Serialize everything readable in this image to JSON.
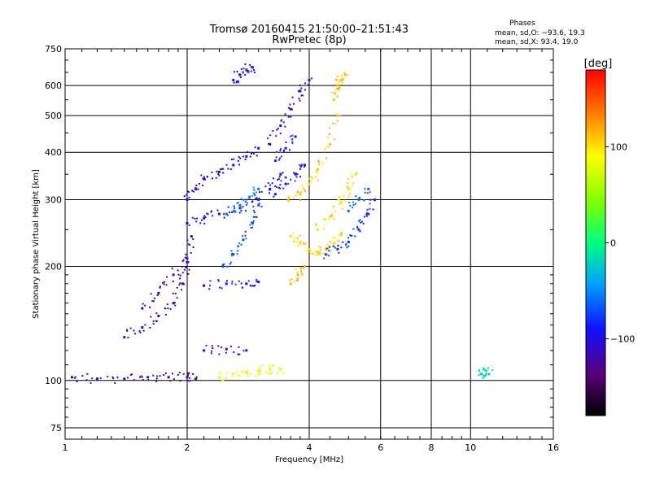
{
  "chart_data": {
    "type": "scatter",
    "title": "Tromsø 20160415 21:50:00–21:51:43",
    "subtitle": "RwPretec (8p)",
    "xlabel": "Frequency [MHz]",
    "ylabel": "Stationary phase Virtual Height [km]",
    "x_scale": "log",
    "y_scale": "log",
    "xlim": [
      1,
      16
    ],
    "ylim": [
      70,
      750
    ],
    "x_ticks": [
      1,
      2,
      4,
      6,
      8,
      10,
      16
    ],
    "y_ticks": [
      75,
      100,
      200,
      300,
      400,
      500,
      600,
      750
    ],
    "x_tick_labels": [
      "1",
      "2",
      "4",
      "6",
      "8",
      "10",
      "16"
    ],
    "y_tick_labels": [
      "75",
      "100",
      "200",
      "300",
      "400",
      "500",
      "600",
      "750"
    ],
    "grid": true,
    "phases_box": {
      "title": "Phases",
      "line_o": "mean, sd,O: −93.6, 19.3",
      "line_x": "mean, sd,X: 93.4, 19.0"
    },
    "colorbar": {
      "title": "[deg]",
      "range": [
        -180,
        180
      ],
      "ticks": [
        100,
        0,
        -100
      ],
      "tick_labels": [
        "100",
        "0",
        "−100"
      ]
    },
    "traces": [
      {
        "x": [
          1.04,
          1.2,
          1.4,
          1.6,
          1.8,
          2.0,
          2.1
        ],
        "y": [
          102,
          101,
          101,
          102,
          102,
          102,
          101
        ],
        "phase": -120
      },
      {
        "x": [
          1.4,
          1.55,
          1.7,
          1.85,
          1.95,
          2.0,
          2.05
        ],
        "y": [
          130,
          138,
          148,
          160,
          180,
          210,
          240
        ],
        "phase": -110
      },
      {
        "x": [
          1.55,
          1.7,
          1.85,
          2.0
        ],
        "y": [
          155,
          170,
          190,
          205
        ],
        "phase": -105
      },
      {
        "x": [
          2.0,
          2.1,
          2.2,
          2.4,
          2.6,
          2.8,
          3.0
        ],
        "y": [
          300,
          320,
          340,
          355,
          370,
          390,
          410
        ],
        "phase": -100
      },
      {
        "x": [
          2.0,
          2.2,
          2.4,
          2.7,
          3.0,
          3.2,
          3.4
        ],
        "y": [
          260,
          268,
          275,
          285,
          300,
          320,
          350
        ],
        "phase": -95
      },
      {
        "x": [
          2.45,
          2.6,
          2.75,
          2.9,
          3.0
        ],
        "y": [
          200,
          215,
          235,
          260,
          290
        ],
        "phase": -70
      },
      {
        "x": [
          2.5,
          2.7,
          2.85,
          3.0
        ],
        "y": [
          275,
          290,
          305,
          320
        ],
        "phase": -60
      },
      {
        "x": [
          2.6,
          2.7,
          2.8,
          2.9
        ],
        "y": [
          620,
          640,
          660,
          670
        ],
        "phase": -95
      },
      {
        "x": [
          2.2,
          2.5,
          2.8,
          3.0
        ],
        "y": [
          178,
          180,
          180,
          182
        ],
        "phase": -90
      },
      {
        "x": [
          2.2,
          2.5,
          2.8
        ],
        "y": [
          120,
          121,
          120
        ],
        "phase": -100
      },
      {
        "x": [
          3.2,
          3.4,
          3.6,
          3.8,
          4.0
        ],
        "y": [
          420,
          470,
          520,
          580,
          620
        ],
        "phase": -100
      },
      {
        "x": [
          3.3,
          3.5,
          3.7,
          3.9
        ],
        "y": [
          310,
          330,
          350,
          370
        ],
        "phase": -90
      },
      {
        "x": [
          3.3,
          3.5,
          3.7
        ],
        "y": [
          380,
          410,
          440
        ],
        "phase": -85
      },
      {
        "x": [
          3.55,
          3.8,
          4.0,
          4.2,
          4.5,
          4.7
        ],
        "y": [
          300,
          310,
          330,
          360,
          420,
          500
        ],
        "phase": 110
      },
      {
        "x": [
          3.6,
          3.8,
          4.0,
          4.2,
          4.4,
          4.6,
          4.8
        ],
        "y": [
          240,
          230,
          222,
          218,
          222,
          230,
          245
        ],
        "phase": 105
      },
      {
        "x": [
          4.2,
          4.5,
          4.8,
          5.0,
          5.2
        ],
        "y": [
          250,
          270,
          295,
          320,
          350
        ],
        "phase": 100
      },
      {
        "x": [
          4.6,
          4.7,
          4.8,
          4.9
        ],
        "y": [
          550,
          600,
          620,
          640
        ],
        "phase": 110
      },
      {
        "x": [
          4.4,
          4.7,
          5.0,
          5.3,
          5.6,
          5.8
        ],
        "y": [
          215,
          222,
          232,
          250,
          275,
          300
        ],
        "phase": -80
      },
      {
        "x": [
          5.0,
          5.3,
          5.6
        ],
        "y": [
          280,
          300,
          320
        ],
        "phase": -60
      },
      {
        "x": [
          2.4,
          2.6,
          2.8,
          3.0,
          3.2,
          3.4
        ],
        "y": [
          102,
          104,
          105,
          106,
          107,
          107
        ],
        "phase": 80
      },
      {
        "x": [
          3.6,
          3.75,
          3.9
        ],
        "y": [
          180,
          190,
          200
        ],
        "phase": 115
      },
      {
        "x": [
          10.6,
          10.8,
          11.1
        ],
        "y": [
          104,
          107,
          104
        ],
        "phase": -20
      }
    ]
  }
}
